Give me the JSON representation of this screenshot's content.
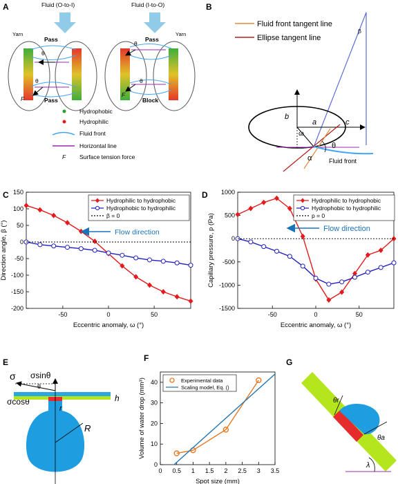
{
  "panels": {
    "A": {
      "label": "A",
      "fluid_oi": "Fluid (O-to-I)",
      "fluid_io": "Fluid (I-to-O)",
      "yarn": "Yarn",
      "pass": "Pass",
      "block": "Block",
      "theta": "θ",
      "F": "F",
      "legend": [
        {
          "label": "Hydrophobic",
          "color": "#2ca02c",
          "symbol": "dot"
        },
        {
          "label": "Hydrophilic",
          "color": "#e41a1c",
          "symbol": "dot"
        },
        {
          "label": "Fluid front",
          "color": "#42a5f5",
          "symbol": "curve"
        },
        {
          "label": "Horizontal line",
          "color": "#9c27b0",
          "symbol": "line"
        },
        {
          "label": "Surface tension force",
          "symbol": "F",
          "F": "F"
        }
      ]
    },
    "B": {
      "label": "B",
      "legend": [
        {
          "label": "Fluid front tangent line",
          "color": "#e08a3c"
        },
        {
          "label": "Ellipse tangent line",
          "color": "#b71c1c"
        }
      ],
      "beta": "β",
      "a": "a",
      "b": "b",
      "c": "c",
      "omega": "ω",
      "theta": "θ",
      "alpha": "α",
      "fluid_front": "Fluid front"
    },
    "E": {
      "label": "E",
      "sigma": "σ",
      "sigma_sin": "σsinθ",
      "sigma_cos": "σcosθ",
      "theta": "θ",
      "h": "h",
      "r": "r",
      "R": "R"
    },
    "G": {
      "label": "G",
      "theta_r": "θr",
      "theta_a": "θa",
      "lambda": "λ"
    }
  },
  "chart_data": [
    {
      "panel": "C",
      "type": "line",
      "xlabel": "Eccentric anomaly,  ω (°)",
      "ylabel": "Direction angle,  β (°)",
      "xlim": [
        -90,
        90
      ],
      "ylim": [
        -200,
        150
      ],
      "xticks": [
        -50,
        0,
        50
      ],
      "yticks": [
        150,
        100,
        50,
        0,
        -50,
        -100,
        -150,
        -200
      ],
      "annotation": "Flow direction",
      "legend_placement": "top-right",
      "series": [
        {
          "name": "Hydrophilic to hydrophobic",
          "color": "#e41a1c",
          "marker": "diamond",
          "x": [
            -90,
            -75,
            -60,
            -45,
            -30,
            -15,
            0,
            15,
            30,
            45,
            60,
            75,
            90
          ],
          "y": [
            110,
            97,
            80,
            58,
            32,
            2,
            -35,
            -72,
            -105,
            -130,
            -150,
            -165,
            -178
          ]
        },
        {
          "name": "Hydrophobic to hydrophilic",
          "color": "#1f1fbf",
          "marker": "circle",
          "x": [
            -90,
            -75,
            -60,
            -45,
            -30,
            -15,
            0,
            15,
            30,
            45,
            60,
            75,
            90
          ],
          "y": [
            0,
            -8,
            -12,
            -16,
            -20,
            -25,
            -33,
            -40,
            -48,
            -54,
            -58,
            -63,
            -70
          ]
        },
        {
          "name": "β = 0",
          "color": "#000000",
          "marker": "none",
          "dash": true,
          "x": [
            -90,
            90
          ],
          "y": [
            0,
            0
          ]
        }
      ]
    },
    {
      "panel": "D",
      "type": "line",
      "xlabel": "Eccentric anomaly,  ω (°)",
      "ylabel": "Capillary pressure,  p (Pa)",
      "xlim": [
        -90,
        90
      ],
      "ylim": [
        -1500,
        1000
      ],
      "xticks": [
        -50,
        0,
        50
      ],
      "yticks": [
        1000,
        500,
        0,
        -500,
        -1000,
        -1500
      ],
      "annotation": "Flow direction",
      "legend_placement": "top-right",
      "series": [
        {
          "name": "Hydrophilic to hydrophobic",
          "color": "#e41a1c",
          "marker": "diamond",
          "x": [
            -90,
            -75,
            -60,
            -45,
            -30,
            -15,
            0,
            15,
            30,
            45,
            60,
            75,
            90
          ],
          "y": [
            520,
            650,
            780,
            870,
            650,
            50,
            -870,
            -1320,
            -1150,
            -750,
            -350,
            -250,
            0
          ]
        },
        {
          "name": "Hydrophobic to hydrophilic",
          "color": "#1f1fbf",
          "marker": "circle",
          "x": [
            -90,
            -75,
            -60,
            -45,
            -30,
            -15,
            0,
            15,
            30,
            45,
            60,
            75,
            90
          ],
          "y": [
            0,
            -70,
            -170,
            -270,
            -380,
            -590,
            -850,
            -980,
            -930,
            -830,
            -720,
            -620,
            -520
          ]
        },
        {
          "name": "p = 0",
          "color": "#000000",
          "marker": "none",
          "dash": true,
          "x": [
            -90,
            90
          ],
          "y": [
            0,
            0
          ]
        }
      ]
    },
    {
      "panel": "F",
      "type": "scatter",
      "xlabel": "Spot size (mm)",
      "ylabel": "Volume of water drop (mm³)",
      "xlim": [
        0,
        3.5
      ],
      "ylim": [
        0,
        45
      ],
      "xticks": [
        0,
        0.5,
        1,
        1.5,
        2,
        2.5,
        3,
        3.5
      ],
      "yticks": [
        0,
        10,
        20,
        30,
        40
      ],
      "legend_placement": "top-left",
      "series": [
        {
          "name": "Experimental data",
          "color": "#e87722",
          "marker": "open-circle",
          "x": [
            0.5,
            1,
            2,
            3
          ],
          "y": [
            5.5,
            7,
            17,
            41
          ]
        },
        {
          "name": "Scaling model, Eq. ()",
          "color": "#1f77b4",
          "marker": "none",
          "x": [
            0.42,
            3.5
          ],
          "y": [
            0,
            44
          ]
        }
      ]
    }
  ]
}
